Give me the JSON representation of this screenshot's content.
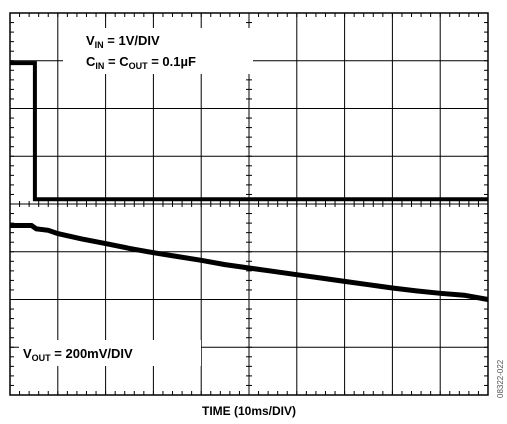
{
  "chart_data": {
    "type": "line",
    "grid": true,
    "xlabel": "TIME (10ms/DIV)",
    "x_divisions": 10,
    "y_divisions": 8,
    "annotations": {
      "vin_scale": {
        "base": "V",
        "sub": "IN",
        "rest": " = 1V/DIV"
      },
      "cap": {
        "p1": "C",
        "s1": "IN",
        "p2": " = C",
        "s2": "OUT",
        "p3": " = 0.1µF"
      },
      "vout_scale": {
        "base": "V",
        "sub": "OUT",
        "rest": " = 200mV/DIV"
      }
    },
    "figure_code": "08322-022",
    "series": [
      {
        "values_unit": "div",
        "x": [
          0,
          0.52,
          0.52,
          10
        ],
        "y": [
          6.95,
          6.95,
          4.1,
          4.1
        ]
      },
      {
        "values_unit": "div",
        "x": [
          0,
          0.45,
          0.55,
          0.8,
          1.0,
          1.5,
          2.0,
          2.5,
          3.0,
          3.5,
          4.0,
          4.5,
          5.0,
          5.5,
          6.0,
          6.5,
          7.0,
          7.5,
          8.0,
          8.5,
          9.0,
          9.5,
          10.0
        ],
        "y": [
          3.55,
          3.55,
          3.48,
          3.45,
          3.38,
          3.27,
          3.17,
          3.07,
          2.98,
          2.9,
          2.82,
          2.73,
          2.66,
          2.59,
          2.52,
          2.45,
          2.38,
          2.31,
          2.24,
          2.18,
          2.13,
          2.09,
          2.0
        ]
      }
    ]
  }
}
